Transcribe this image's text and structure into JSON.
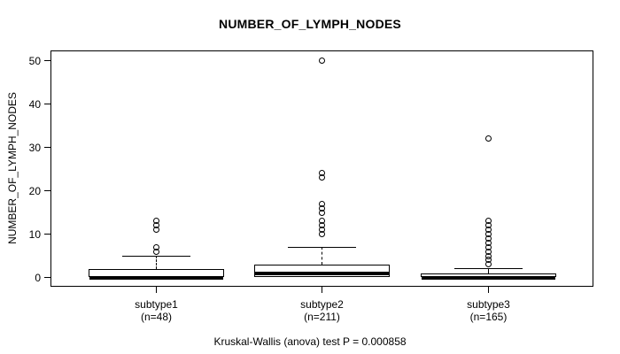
{
  "chart_data": {
    "type": "boxplot",
    "title": "NUMBER_OF_LYMPH_NODES",
    "ylabel": "NUMBER_OF_LYMPH_NODES",
    "xlabel": "",
    "ylim": [
      0,
      50
    ],
    "yticks": [
      0,
      10,
      20,
      30,
      40,
      50
    ],
    "grid": false,
    "groups": [
      {
        "label": "subtype1",
        "n_label": "(n=48)",
        "n": 48,
        "q1": 0,
        "median": 0,
        "q3": 2,
        "whisker_low": 0,
        "whisker_high": 5,
        "outliers": [
          6,
          7,
          11,
          12,
          13
        ]
      },
      {
        "label": "subtype2",
        "n_label": "(n=211)",
        "n": 211,
        "q1": 0,
        "median": 1,
        "q3": 3,
        "whisker_low": 0,
        "whisker_high": 7,
        "outliers": [
          10,
          11,
          12,
          13,
          15,
          16,
          17,
          23,
          24,
          50
        ]
      },
      {
        "label": "subtype3",
        "n_label": "(n=165)",
        "n": 165,
        "q1": 0,
        "median": 0,
        "q3": 1,
        "whisker_low": 0,
        "whisker_high": 2,
        "outliers": [
          3,
          4,
          5,
          6,
          7,
          8,
          9,
          10,
          11,
          12,
          13,
          32
        ]
      }
    ],
    "stat_test": "Kruskal-Wallis (anova) test P = 0.000858"
  },
  "colors": {
    "foreground": "#000000",
    "background": "#ffffff",
    "box_fill": "#ffffff"
  }
}
